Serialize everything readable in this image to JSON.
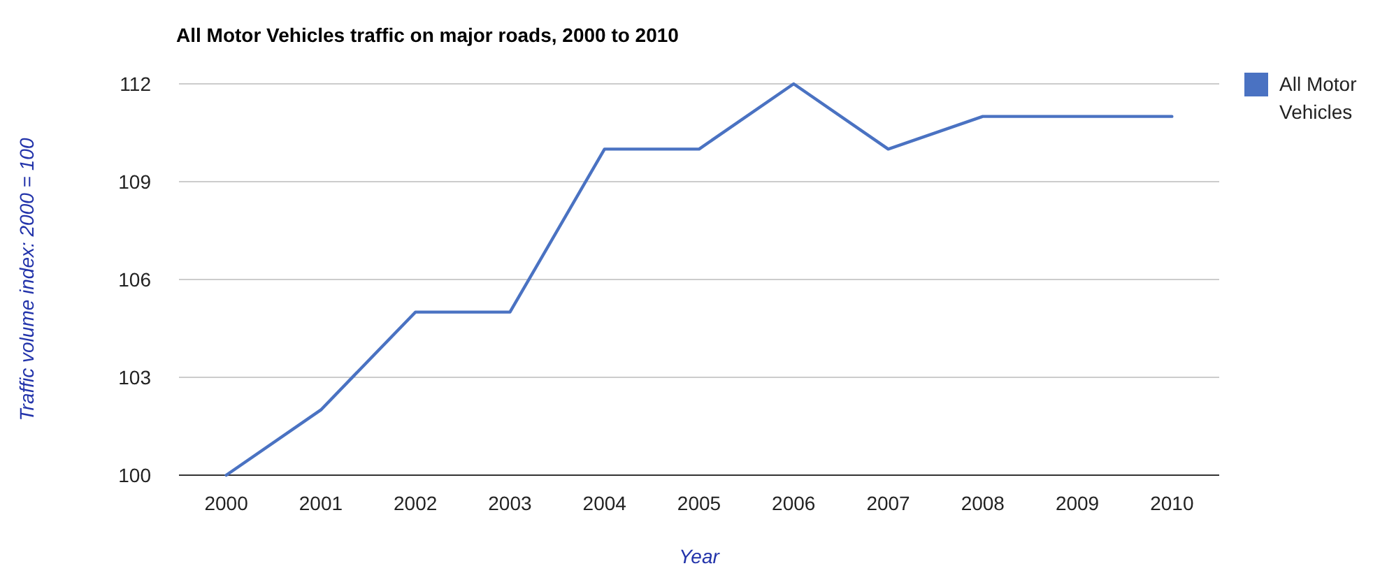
{
  "chart_data": {
    "type": "line",
    "title": "All Motor Vehicles traffic on major roads, 2000 to 2010",
    "xlabel": "Year",
    "ylabel": "Traffic volume index: 2000 = 100",
    "categories": [
      "2000",
      "2001",
      "2002",
      "2003",
      "2004",
      "2005",
      "2006",
      "2007",
      "2008",
      "2009",
      "2010"
    ],
    "series": [
      {
        "name": "All Motor Vehicles",
        "color": "#4a72c2",
        "values": [
          100,
          102,
          105,
          105,
          110,
          110,
          112,
          110,
          111,
          111,
          111
        ]
      }
    ],
    "ylim": [
      100,
      112
    ],
    "yticks": [
      100,
      103,
      106,
      109,
      112
    ],
    "grid": "y",
    "legend": "right",
    "marker": "none",
    "line_style": "solid"
  }
}
